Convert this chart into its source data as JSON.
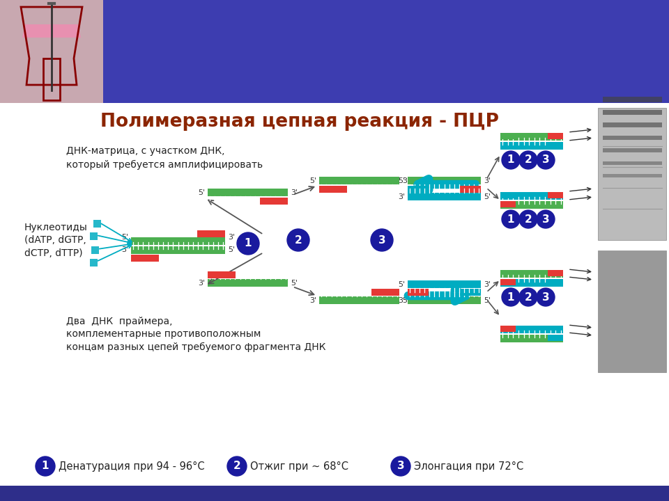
{
  "title": "Полимеразная цепная реакция - ПЦР",
  "title_color": "#8B2500",
  "bg_color": "#FFFFFF",
  "header_color": "#3D3DB0",
  "bottom_bar_color": "#2E2E8A",
  "green_color": "#4CAF50",
  "red_color": "#E53935",
  "teal_color": "#00ACC1",
  "blue_circle_color": "#1A1A9E",
  "text_dna_matrix": "ДНК-матрица, с участком ДНК,\nкоторый требуется амплифицировать",
  "text_nucleotides": "Нуклеотиды\n(dATP, dGTP,\ndCTP, dTTP)",
  "text_primers": "Два  ДНК  праймера,\nкомплементарные противоположным\nконцам разных цепей требуемого фрагмента ДНК",
  "legend_1": "Денатурация при 94 - 96°C",
  "legend_2": "Отжиг при ~ 68°C",
  "legend_3": "Элонгация при 72°C"
}
